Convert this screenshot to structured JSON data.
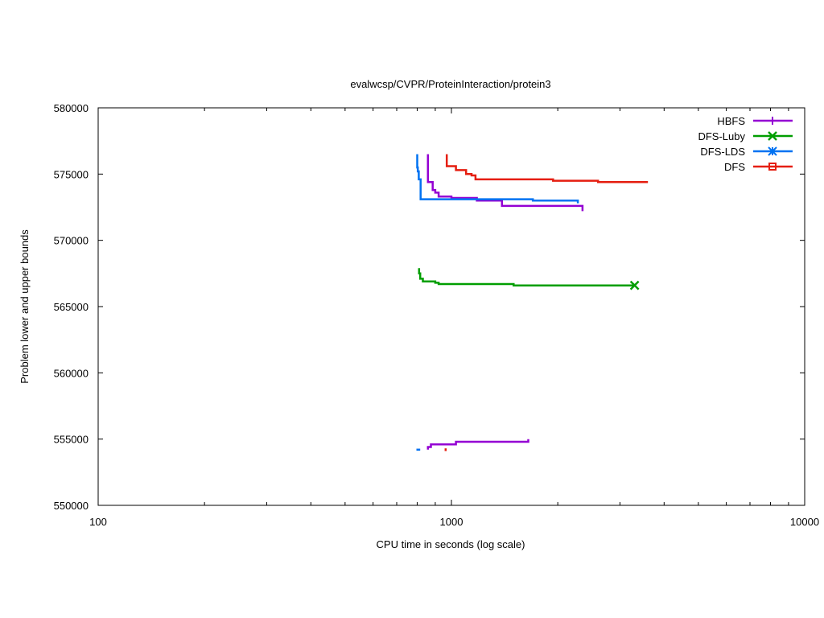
{
  "chart_data": {
    "type": "line",
    "title": "evalwcsp/CVPR/ProteinInteraction/protein3",
    "xlabel": "CPU time in seconds (log scale)",
    "ylabel": "Problem lower and upper bounds",
    "xscale": "log",
    "xlim": [
      100,
      10000
    ],
    "ylim": [
      550000,
      580000
    ],
    "x_tick_labels": [
      {
        "value": 100,
        "label": "100"
      },
      {
        "value": 1000,
        "label": "1000"
      },
      {
        "value": 10000,
        "label": "10000"
      }
    ],
    "y_ticks": [
      550000,
      555000,
      560000,
      565000,
      570000,
      575000,
      580000
    ],
    "y_tick_labels": [
      "550000",
      "555000",
      "560000",
      "565000",
      "570000",
      "575000",
      "580000"
    ],
    "grid": false,
    "legend_position": "top-right",
    "series": [
      {
        "name": "HBFS",
        "color": "#9400d3",
        "marker": "plus",
        "upper": [
          [
            858,
            576500
          ],
          [
            858,
            574400
          ],
          [
            885,
            574400
          ],
          [
            885,
            573800
          ],
          [
            900,
            573800
          ],
          [
            900,
            573600
          ],
          [
            920,
            573600
          ],
          [
            920,
            573300
          ],
          [
            1000,
            573300
          ],
          [
            1000,
            573200
          ],
          [
            1180,
            573200
          ],
          [
            1180,
            573000
          ],
          [
            1390,
            573000
          ],
          [
            1390,
            572600
          ],
          [
            2350,
            572600
          ],
          [
            2350,
            572200
          ]
        ],
        "lower": [
          [
            858,
            554200
          ],
          [
            858,
            554400
          ],
          [
            875,
            554400
          ],
          [
            875,
            554600
          ],
          [
            1030,
            554600
          ],
          [
            1030,
            554800
          ],
          [
            1650,
            554800
          ],
          [
            1650,
            555000
          ]
        ]
      },
      {
        "name": "DFS-Luby",
        "color": "#009e00",
        "marker": "x",
        "upper": [
          [
            810,
            567900
          ],
          [
            810,
            567500
          ],
          [
            816,
            567500
          ],
          [
            816,
            567100
          ],
          [
            830,
            567100
          ],
          [
            830,
            566900
          ],
          [
            900,
            566900
          ],
          [
            900,
            566800
          ],
          [
            920,
            566800
          ],
          [
            920,
            566700
          ],
          [
            1500,
            566700
          ],
          [
            1500,
            566600
          ],
          [
            3300,
            566600
          ]
        ],
        "lower": []
      },
      {
        "name": "DFS-LDS",
        "color": "#0072f2",
        "marker": "star",
        "upper": [
          [
            800,
            576500
          ],
          [
            800,
            575500
          ],
          [
            803,
            575500
          ],
          [
            803,
            575200
          ],
          [
            808,
            575200
          ],
          [
            808,
            574600
          ],
          [
            818,
            574600
          ],
          [
            818,
            573100
          ],
          [
            1700,
            573100
          ],
          [
            1700,
            573000
          ],
          [
            2280,
            573000
          ],
          [
            2280,
            572800
          ]
        ],
        "lower": [
          [
            796,
            554200
          ],
          [
            816,
            554200
          ]
        ]
      },
      {
        "name": "DFS",
        "color": "#e51e10",
        "marker": "square",
        "upper": [
          [
            970,
            576500
          ],
          [
            970,
            575600
          ],
          [
            1030,
            575600
          ],
          [
            1030,
            575300
          ],
          [
            1100,
            575300
          ],
          [
            1100,
            575000
          ],
          [
            1140,
            575000
          ],
          [
            1140,
            574900
          ],
          [
            1170,
            574900
          ],
          [
            1170,
            574600
          ],
          [
            1940,
            574600
          ],
          [
            1940,
            574500
          ],
          [
            2600,
            574500
          ],
          [
            2600,
            574400
          ],
          [
            3600,
            574400
          ]
        ],
        "lower": [
          [
            963,
            554100
          ],
          [
            963,
            554300
          ]
        ]
      }
    ]
  }
}
